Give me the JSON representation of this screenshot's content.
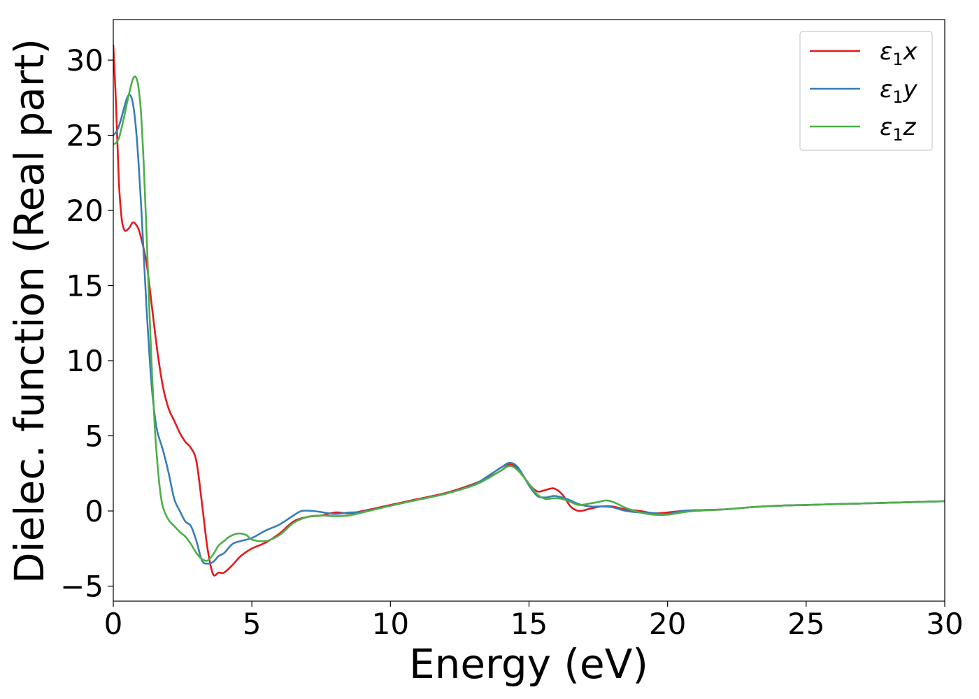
{
  "chart_data": {
    "type": "line",
    "xlabel": "Energy (eV)",
    "ylabel": "Dielec. function (Real part)",
    "xlim": [
      0,
      30
    ],
    "ylim": [
      -6.0,
      32.7
    ],
    "xticks": [
      0,
      5,
      10,
      15,
      20,
      25,
      30
    ],
    "yticks": [
      -5,
      0,
      5,
      10,
      15,
      20,
      25,
      30
    ],
    "xtick_labels": [
      "0",
      "5",
      "10",
      "15",
      "20",
      "25",
      "30"
    ],
    "ytick_labels": [
      "−5",
      "0",
      "5",
      "10",
      "15",
      "20",
      "25",
      "30"
    ],
    "grid": false,
    "legend_position": "top-right",
    "series": [
      {
        "name": "ε₁x",
        "legend_main": "ε",
        "legend_sub": "1",
        "legend_var": "x",
        "color": "#e41a1c",
        "x": [
          0,
          0.1,
          0.2,
          0.3,
          0.4,
          0.5,
          0.6,
          0.7,
          0.8,
          0.9,
          1.0,
          1.2,
          1.4,
          1.6,
          1.8,
          2.0,
          2.2,
          2.4,
          2.6,
          2.8,
          3.0,
          3.2,
          3.4,
          3.6,
          3.8,
          4.0,
          4.3,
          4.6,
          5.0,
          5.5,
          6.0,
          6.5,
          7.0,
          7.5,
          8.0,
          8.5,
          9.0,
          10,
          11,
          12,
          13,
          13.5,
          14.0,
          14.3,
          14.6,
          15.0,
          15.3,
          15.6,
          15.9,
          16.2,
          16.5,
          16.8,
          17.2,
          17.6,
          18.0,
          18.5,
          19.0,
          19.5,
          20.0,
          20.5,
          21.0,
          22,
          23,
          24,
          25,
          26,
          27,
          28,
          29,
          30
        ],
        "y": [
          31.0,
          27.0,
          22.0,
          19.5,
          18.7,
          18.7,
          18.9,
          19.2,
          19.1,
          18.8,
          18.2,
          16.5,
          13.5,
          10.5,
          8.2,
          6.8,
          6.0,
          5.2,
          4.6,
          4.2,
          3.3,
          0.5,
          -2.5,
          -4.2,
          -4.1,
          -4.1,
          -3.6,
          -3.0,
          -2.5,
          -2.1,
          -1.5,
          -0.7,
          -0.4,
          -0.3,
          -0.1,
          -0.15,
          0.0,
          0.4,
          0.8,
          1.2,
          1.8,
          2.2,
          2.7,
          3.1,
          2.8,
          1.8,
          1.3,
          1.4,
          1.5,
          1.1,
          0.3,
          0.0,
          0.15,
          0.3,
          0.3,
          0.1,
          0.0,
          -0.15,
          -0.1,
          0.0,
          0.05,
          0.1,
          0.25,
          0.35,
          0.4,
          0.45,
          0.5,
          0.55,
          0.6,
          0.65
        ]
      },
      {
        "name": "ε₁y",
        "legend_main": "ε",
        "legend_sub": "1",
        "legend_var": "y",
        "color": "#377eb8",
        "x": [
          0,
          0.1,
          0.2,
          0.3,
          0.4,
          0.5,
          0.6,
          0.7,
          0.8,
          0.9,
          1.0,
          1.1,
          1.2,
          1.3,
          1.4,
          1.5,
          1.6,
          1.8,
          2.0,
          2.2,
          2.4,
          2.6,
          2.8,
          3.0,
          3.2,
          3.4,
          3.6,
          3.8,
          4.0,
          4.3,
          4.6,
          5.0,
          5.5,
          6.0,
          6.5,
          6.8,
          7.2,
          7.6,
          8.0,
          8.5,
          9.0,
          10,
          11,
          12,
          13,
          13.5,
          14.0,
          14.3,
          14.6,
          15.0,
          15.3,
          15.6,
          15.9,
          16.2,
          16.5,
          16.8,
          17.2,
          17.6,
          18.0,
          18.5,
          19.0,
          19.5,
          20.0,
          20.5,
          21.0,
          22,
          23,
          24,
          25,
          26,
          27,
          28,
          29,
          30
        ],
        "y": [
          25.0,
          25.2,
          25.6,
          26.2,
          26.9,
          27.5,
          27.7,
          27.2,
          25.8,
          23.5,
          20.5,
          17.0,
          13.5,
          10.5,
          8.0,
          6.3,
          5.2,
          4.0,
          2.5,
          0.8,
          0.0,
          -0.7,
          -1.0,
          -2.0,
          -3.3,
          -3.5,
          -3.4,
          -3.0,
          -2.8,
          -2.2,
          -2.0,
          -1.8,
          -1.3,
          -0.9,
          -0.3,
          0.0,
          0.0,
          -0.1,
          -0.2,
          -0.1,
          -0.05,
          0.35,
          0.75,
          1.15,
          1.75,
          2.3,
          2.9,
          3.2,
          2.9,
          1.7,
          1.0,
          0.9,
          1.0,
          0.9,
          0.7,
          0.45,
          0.3,
          0.3,
          0.25,
          0.0,
          -0.1,
          -0.15,
          -0.2,
          0.0,
          0.05,
          0.1,
          0.25,
          0.35,
          0.4,
          0.45,
          0.5,
          0.55,
          0.6,
          0.65
        ]
      },
      {
        "name": "ε₁z",
        "legend_main": "ε",
        "legend_sub": "1",
        "legend_var": "z",
        "color": "#4daf4a",
        "x": [
          0,
          0.1,
          0.2,
          0.3,
          0.4,
          0.5,
          0.6,
          0.7,
          0.8,
          0.9,
          1.0,
          1.1,
          1.2,
          1.3,
          1.4,
          1.5,
          1.6,
          1.7,
          1.8,
          2.0,
          2.2,
          2.4,
          2.6,
          2.8,
          3.0,
          3.2,
          3.4,
          3.6,
          3.8,
          4.0,
          4.2,
          4.5,
          4.8,
          5.0,
          5.5,
          6.0,
          6.5,
          7.0,
          7.5,
          8.0,
          8.5,
          9.0,
          10,
          11,
          12,
          13,
          13.5,
          14.0,
          14.3,
          14.6,
          15.0,
          15.3,
          15.6,
          15.9,
          16.2,
          16.5,
          16.8,
          17.2,
          17.5,
          17.8,
          18.1,
          18.5,
          19.0,
          19.5,
          20.0,
          20.5,
          21.0,
          22,
          23,
          24,
          25,
          26,
          27,
          28,
          29,
          30
        ],
        "y": [
          24.4,
          24.5,
          24.8,
          25.5,
          26.3,
          27.2,
          28.0,
          28.7,
          28.9,
          28.3,
          26.5,
          23.0,
          18.5,
          13.5,
          9.0,
          5.5,
          3.0,
          1.2,
          0.2,
          -0.6,
          -1.0,
          -1.4,
          -1.7,
          -2.2,
          -2.8,
          -3.2,
          -3.3,
          -2.9,
          -2.3,
          -2.0,
          -1.7,
          -1.5,
          -1.6,
          -1.9,
          -2.0,
          -1.6,
          -0.8,
          -0.4,
          -0.3,
          -0.35,
          -0.3,
          -0.1,
          0.35,
          0.75,
          1.15,
          1.7,
          2.15,
          2.7,
          3.0,
          2.7,
          1.8,
          1.1,
          0.8,
          0.85,
          0.8,
          0.6,
          0.4,
          0.5,
          0.6,
          0.7,
          0.55,
          0.2,
          -0.1,
          -0.25,
          -0.25,
          -0.1,
          0.0,
          0.1,
          0.25,
          0.35,
          0.4,
          0.45,
          0.5,
          0.55,
          0.6,
          0.65
        ]
      }
    ]
  }
}
